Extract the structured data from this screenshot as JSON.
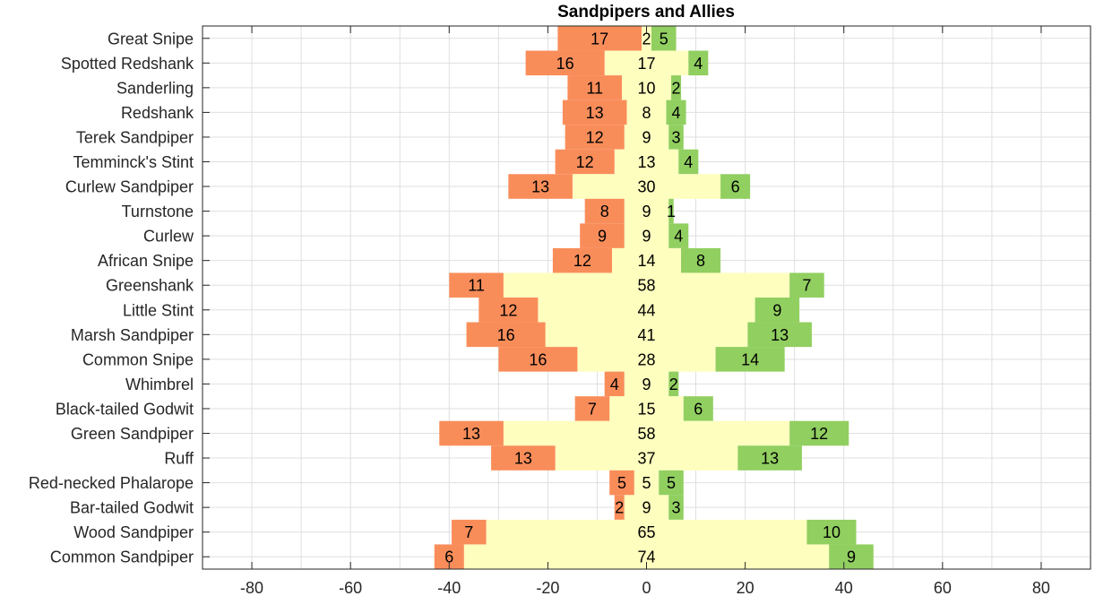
{
  "chart_data": {
    "type": "bar",
    "orientation": "horizontal-diverging",
    "title": "Sandpipers and Allies",
    "xlabel": "",
    "ylabel": "",
    "xlim": [
      -90,
      90
    ],
    "xticks": [
      -80,
      -60,
      -40,
      -20,
      0,
      20,
      40,
      60,
      80
    ],
    "grid": true,
    "colors": {
      "negative": "#f98d5a",
      "neutral": "#fefebe",
      "positive": "#91cf60"
    },
    "categories": [
      "Great Snipe",
      "Spotted Redshank",
      "Sanderling",
      "Redshank",
      "Terek Sandpiper",
      "Temminck's Stint",
      "Curlew Sandpiper",
      "Turnstone",
      "Curlew",
      "African Snipe",
      "Greenshank",
      "Little Stint",
      "Marsh Sandpiper",
      "Common Snipe",
      "Whimbrel",
      "Black-tailed Godwit",
      "Green Sandpiper",
      "Ruff",
      "Red-necked Phalarope",
      "Bar-tailed Godwit",
      "Wood Sandpiper",
      "Common Sandpiper"
    ],
    "series": [
      {
        "values": [
          17,
          16,
          11,
          13,
          12,
          12,
          13,
          8,
          9,
          12,
          11,
          12,
          16,
          16,
          4,
          7,
          13,
          13,
          5,
          2,
          7,
          6
        ]
      },
      {
        "values": [
          2,
          17,
          10,
          8,
          9,
          13,
          30,
          9,
          9,
          14,
          58,
          44,
          41,
          28,
          9,
          15,
          58,
          37,
          5,
          9,
          65,
          74
        ]
      },
      {
        "values": [
          5,
          4,
          2,
          4,
          3,
          4,
          6,
          1,
          4,
          8,
          7,
          9,
          13,
          14,
          2,
          6,
          12,
          13,
          5,
          3,
          10,
          9
        ]
      }
    ]
  }
}
